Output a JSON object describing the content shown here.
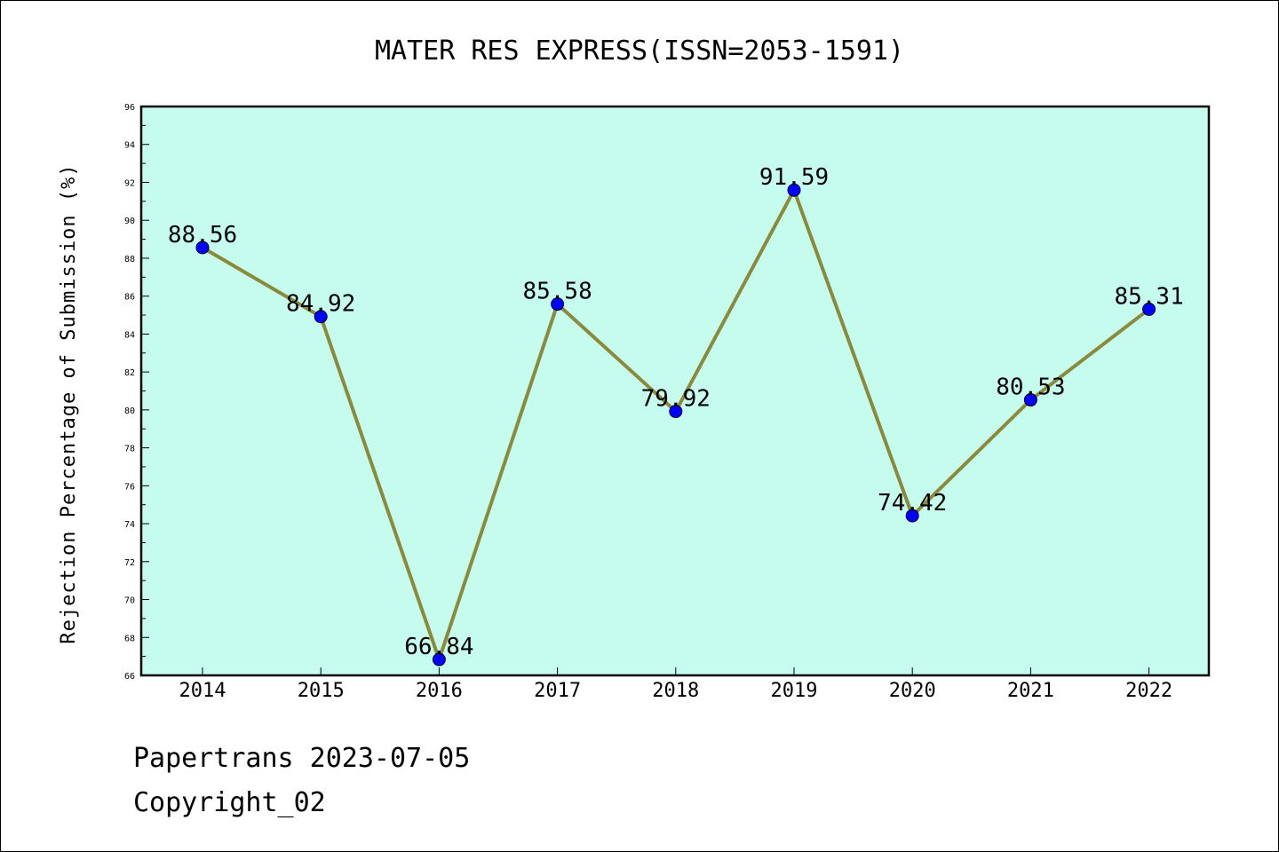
{
  "chart_data": {
    "type": "line",
    "title": "MATER RES EXPRESS(ISSN=2053-1591)",
    "xlabel": "",
    "ylabel": "Rejection Percentage of Submission (%)",
    "categories": [
      "2014",
      "2015",
      "2016",
      "2017",
      "2018",
      "2019",
      "2020",
      "2021",
      "2022"
    ],
    "series": [
      {
        "values": [
          88.56,
          84.92,
          66.84,
          85.58,
          79.92,
          91.59,
          74.42,
          80.53,
          85.31
        ],
        "labels": [
          "88.56",
          "84.92",
          "66.84",
          "85.58",
          "79.92",
          "91.59",
          "74.42",
          "80.53",
          "85.31"
        ]
      }
    ],
    "ylim": [
      66,
      96
    ],
    "yticks": [
      "66",
      "68",
      "70",
      "72",
      "74",
      "76",
      "78",
      "80",
      "82",
      "84",
      "86",
      "88",
      "90",
      "92",
      "94",
      "96"
    ],
    "grid": false,
    "colors": {
      "plot_background": "#c6fcee",
      "line": "#8b8a3a",
      "marker": "#0000ff"
    }
  },
  "footer": {
    "line1": "Papertrans 2023-07-05",
    "line2": "Copyright_02"
  }
}
